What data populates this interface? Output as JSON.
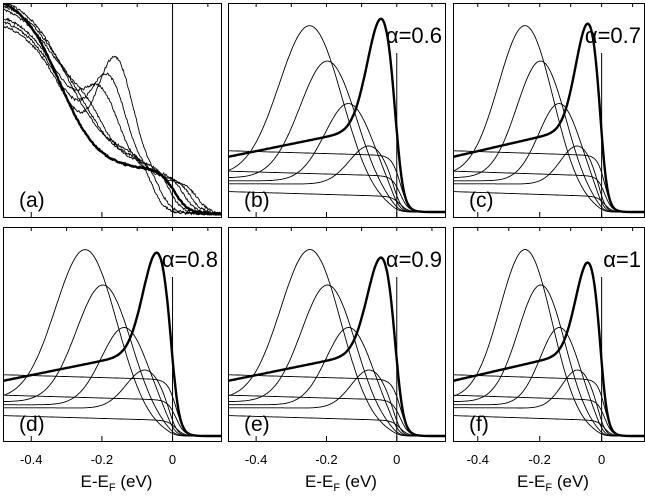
{
  "chart_data": [
    {
      "panel": "a",
      "type": "line",
      "label": "(a)",
      "alpha_text": "",
      "x_ticks": [
        "-0.4",
        "-0.2",
        "0"
      ],
      "xlabel": "",
      "xlim": [
        -0.48,
        0.14
      ]
    },
    {
      "panel": "b",
      "type": "line",
      "label": "(b)",
      "alpha_text": "α=0.6",
      "alpha": 0.6,
      "x_ticks": [
        "-0.4",
        "-0.2",
        "0"
      ],
      "xlabel": "",
      "xlim": [
        -0.48,
        0.14
      ]
    },
    {
      "panel": "c",
      "type": "line",
      "label": "(c)",
      "alpha_text": "α=0.7",
      "alpha": 0.7,
      "x_ticks": [
        "-0.4",
        "-0.2",
        "0"
      ],
      "xlabel": "",
      "xlim": [
        -0.48,
        0.14
      ]
    },
    {
      "panel": "d",
      "type": "line",
      "label": "(d)",
      "alpha_text": "α=0.8",
      "alpha": 0.8,
      "x_ticks": [
        "-0.4",
        "-0.2",
        "0"
      ],
      "xlabel": "E-E_F (eV)",
      "xlim": [
        -0.48,
        0.14
      ]
    },
    {
      "panel": "e",
      "type": "line",
      "label": "(e)",
      "alpha_text": "α=0.9",
      "alpha": 0.9,
      "x_ticks": [
        "-0.4",
        "-0.2",
        "0"
      ],
      "xlabel": "E-E_F (eV)",
      "xlim": [
        -0.48,
        0.14
      ]
    },
    {
      "panel": "f",
      "type": "line",
      "label": "(f)",
      "alpha_text": "α=1",
      "alpha": 1.0,
      "x_ticks": [
        "-0.4",
        "-0.2",
        "0"
      ],
      "xlabel": "E-E_F (eV)",
      "xlim": [
        -0.48,
        0.14
      ]
    }
  ],
  "axis_text": {
    "xlabel_main": "E-E",
    "xlabel_sub": "F",
    "xlabel_unit": " (eV)"
  },
  "model": {
    "peak_energies": [
      -0.24,
      -0.19,
      -0.13,
      -0.07,
      -0.03,
      0.005,
      0.025,
      0.04
    ],
    "bold_index": 4,
    "temperature_eV": 0.012
  }
}
